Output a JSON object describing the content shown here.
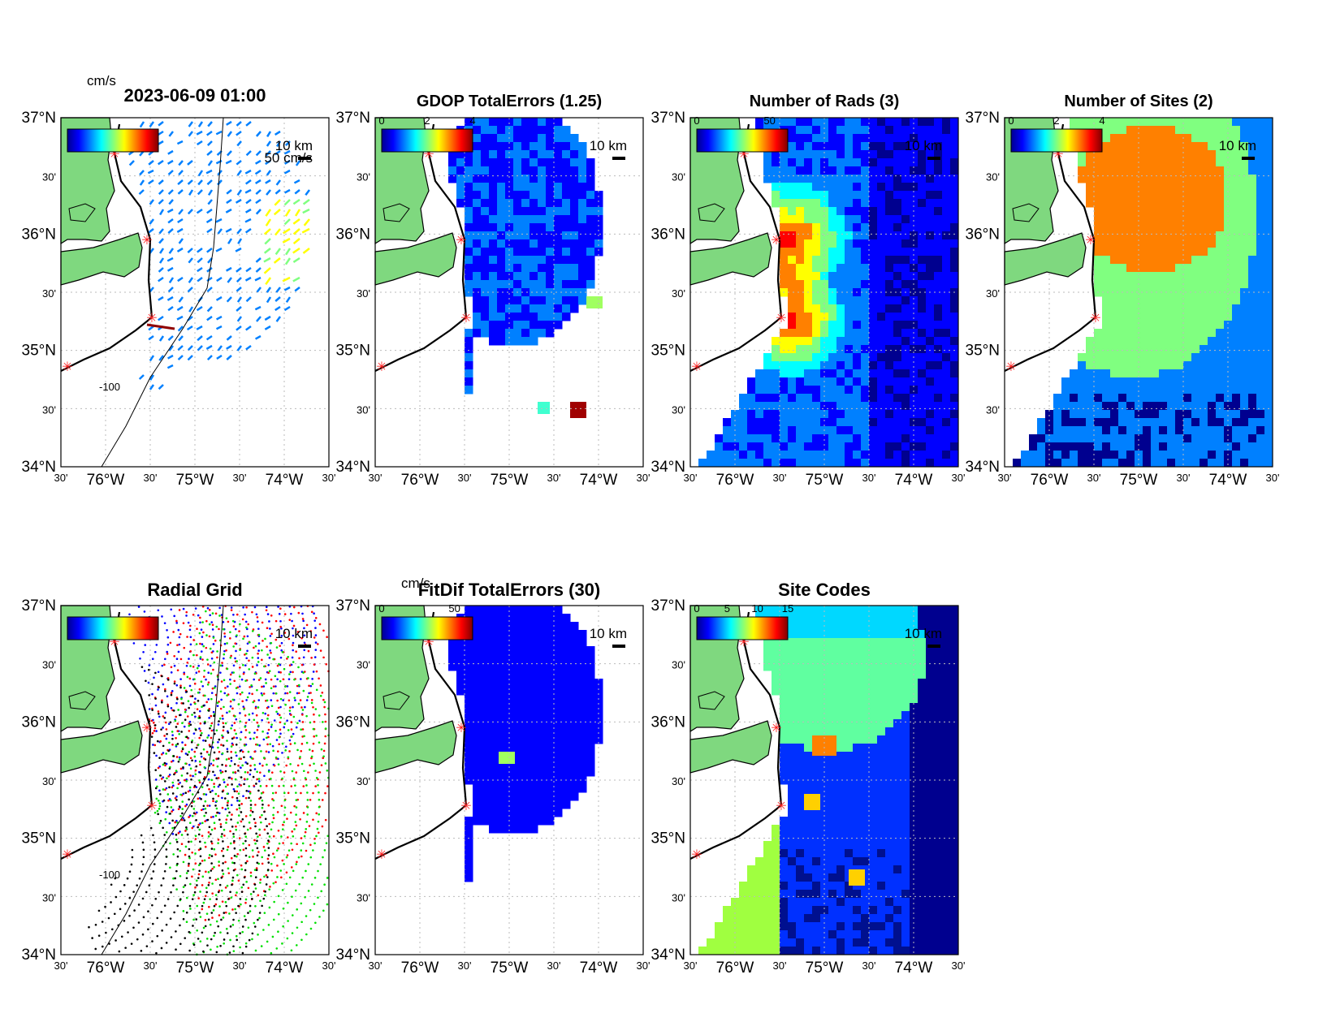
{
  "timestamp_title": "2023-06-09 01:00",
  "panels": [
    {
      "id": "total-vectors",
      "title": "",
      "colorbar_unit": "cm/s",
      "vector_scale_label": "50 cm/s",
      "distance_label": "10 km",
      "colorbar_ticks": [],
      "isobath_label": "-100"
    },
    {
      "id": "gdop",
      "title": "GDOP TotalErrors (1.25)",
      "colorbar_unit": "",
      "distance_label": "10 km",
      "colorbar_ticks": [
        "0",
        "2",
        "4"
      ],
      "contour_label": "1.25"
    },
    {
      "id": "num-rads",
      "title": "Number of Rads (3)",
      "colorbar_unit": "",
      "distance_label": "10 km",
      "colorbar_ticks": [
        "0",
        "50"
      ],
      "contour_label": "3"
    },
    {
      "id": "num-sites",
      "title": "Number of Sites (2)",
      "colorbar_unit": "",
      "distance_label": "10 km",
      "colorbar_ticks": [
        "0",
        "2",
        "4"
      ],
      "contour_label": "2"
    },
    {
      "id": "radial-grid",
      "title": "Radial Grid",
      "colorbar_unit": "",
      "distance_label": "10 km",
      "colorbar_ticks": [],
      "isobath_label": "-100"
    },
    {
      "id": "fitdif",
      "title": "FitDif TotalErrors (30)",
      "colorbar_unit": "cm/s",
      "distance_label": "10 km",
      "colorbar_ticks": [
        "0",
        "50"
      ],
      "contour_label": "30"
    },
    {
      "id": "site-codes",
      "title": "Site Codes",
      "colorbar_unit": "",
      "distance_label": "10 km",
      "colorbar_ticks": [
        "0",
        "5",
        "10",
        "15"
      ]
    }
  ],
  "axes": {
    "lat_labels": [
      "37°N",
      "30'",
      "36°N",
      "30'",
      "35°N",
      "30'",
      "34°N"
    ],
    "lon_labels": [
      "30'",
      "76°W",
      "30'",
      "75°W",
      "30'",
      "74°W",
      "30'"
    ]
  },
  "colors": {
    "land": "#7fd87f",
    "colormap": [
      "#00008f",
      "#0000ff",
      "#0080ff",
      "#00ffff",
      "#80ff80",
      "#ffff00",
      "#ff8000",
      "#ff0000",
      "#800000"
    ],
    "site_marker": "#ff2020"
  },
  "chart_data": [
    {
      "type": "heatmap",
      "panel": "total-vectors",
      "title": "2023-06-09 01:00",
      "xlim": [
        -76.5,
        -73.5
      ],
      "ylim": [
        34,
        37
      ]
    },
    {
      "type": "heatmap",
      "panel": "gdop",
      "title": "GDOP TotalErrors (1.25)",
      "clim": [
        0,
        4
      ],
      "xlim": [
        -76.5,
        -73.5
      ],
      "ylim": [
        34,
        37
      ]
    },
    {
      "type": "heatmap",
      "panel": "num-rads",
      "title": "Number of Rads (3)",
      "clim": [
        0,
        60
      ],
      "xlim": [
        -76.5,
        -73.5
      ],
      "ylim": [
        34,
        37
      ]
    },
    {
      "type": "heatmap",
      "panel": "num-sites",
      "title": "Number of Sites (2)",
      "clim": [
        0,
        4
      ],
      "xlim": [
        -76.5,
        -73.5
      ],
      "ylim": [
        34,
        37
      ]
    },
    {
      "type": "scatter",
      "panel": "radial-grid",
      "title": "Radial Grid",
      "xlim": [
        -76.5,
        -73.5
      ],
      "ylim": [
        34,
        37
      ]
    },
    {
      "type": "heatmap",
      "panel": "fitdif",
      "title": "FitDif TotalErrors (30)",
      "clim": [
        0,
        60
      ],
      "xlim": [
        -76.5,
        -73.5
      ],
      "ylim": [
        34,
        37
      ]
    },
    {
      "type": "heatmap",
      "panel": "site-codes",
      "title": "Site Codes",
      "clim": [
        0,
        16
      ],
      "xlim": [
        -76.5,
        -73.5
      ],
      "ylim": [
        34,
        37
      ]
    }
  ]
}
